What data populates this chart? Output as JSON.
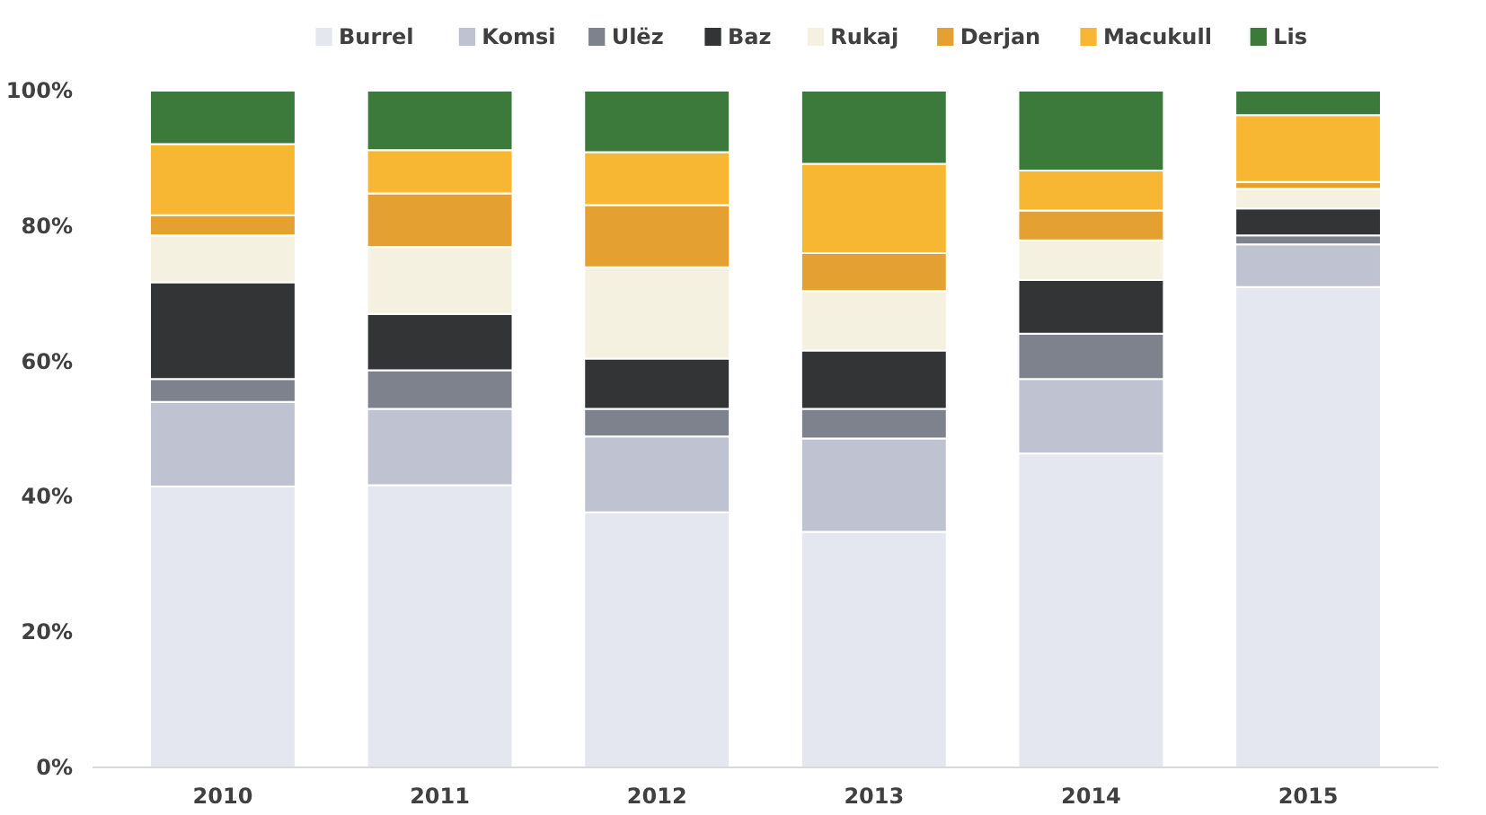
{
  "chart_data": {
    "type": "bar",
    "stacked": true,
    "categories": [
      "2010",
      "2011",
      "2012",
      "2013",
      "2014",
      "2015"
    ],
    "series": [
      {
        "name": "Burrel",
        "color": "#e4e7ef",
        "values": [
          41.5,
          41.7,
          37.7,
          34.8,
          46.4,
          71.0
        ]
      },
      {
        "name": "Komsi",
        "color": "#bfc2d0",
        "values": [
          12.5,
          11.3,
          11.2,
          13.8,
          11.0,
          6.3
        ]
      },
      {
        "name": "Ulëz",
        "color": "#7e828c",
        "values": [
          3.4,
          5.7,
          4.1,
          4.4,
          6.7,
          1.3
        ]
      },
      {
        "name": "Baz",
        "color": "#333435",
        "values": [
          14.3,
          8.3,
          7.4,
          8.6,
          7.9,
          4.0
        ]
      },
      {
        "name": "Rukaj",
        "color": "#f5f1e0",
        "values": [
          6.9,
          9.9,
          13.5,
          8.8,
          5.9,
          2.9
        ]
      },
      {
        "name": "Derjan",
        "color": "#e4a030",
        "values": [
          3.0,
          7.9,
          9.2,
          5.6,
          4.4,
          1.0
        ]
      },
      {
        "name": "Macukull",
        "color": "#f7b733",
        "values": [
          10.5,
          6.4,
          7.8,
          13.2,
          5.9,
          9.9
        ]
      },
      {
        "name": "Lis",
        "color": "#3c7a3c",
        "values": [
          7.9,
          8.8,
          9.1,
          10.8,
          11.8,
          3.6
        ]
      }
    ],
    "ylim": [
      0,
      100
    ],
    "yticks": [
      {
        "value": 0,
        "label": "0%"
      },
      {
        "value": 20,
        "label": "20%"
      },
      {
        "value": 40,
        "label": "40%"
      },
      {
        "value": 60,
        "label": "60%"
      },
      {
        "value": 80,
        "label": "80%"
      },
      {
        "value": 100,
        "label": "100%"
      }
    ],
    "grid": false,
    "legend": "top"
  }
}
